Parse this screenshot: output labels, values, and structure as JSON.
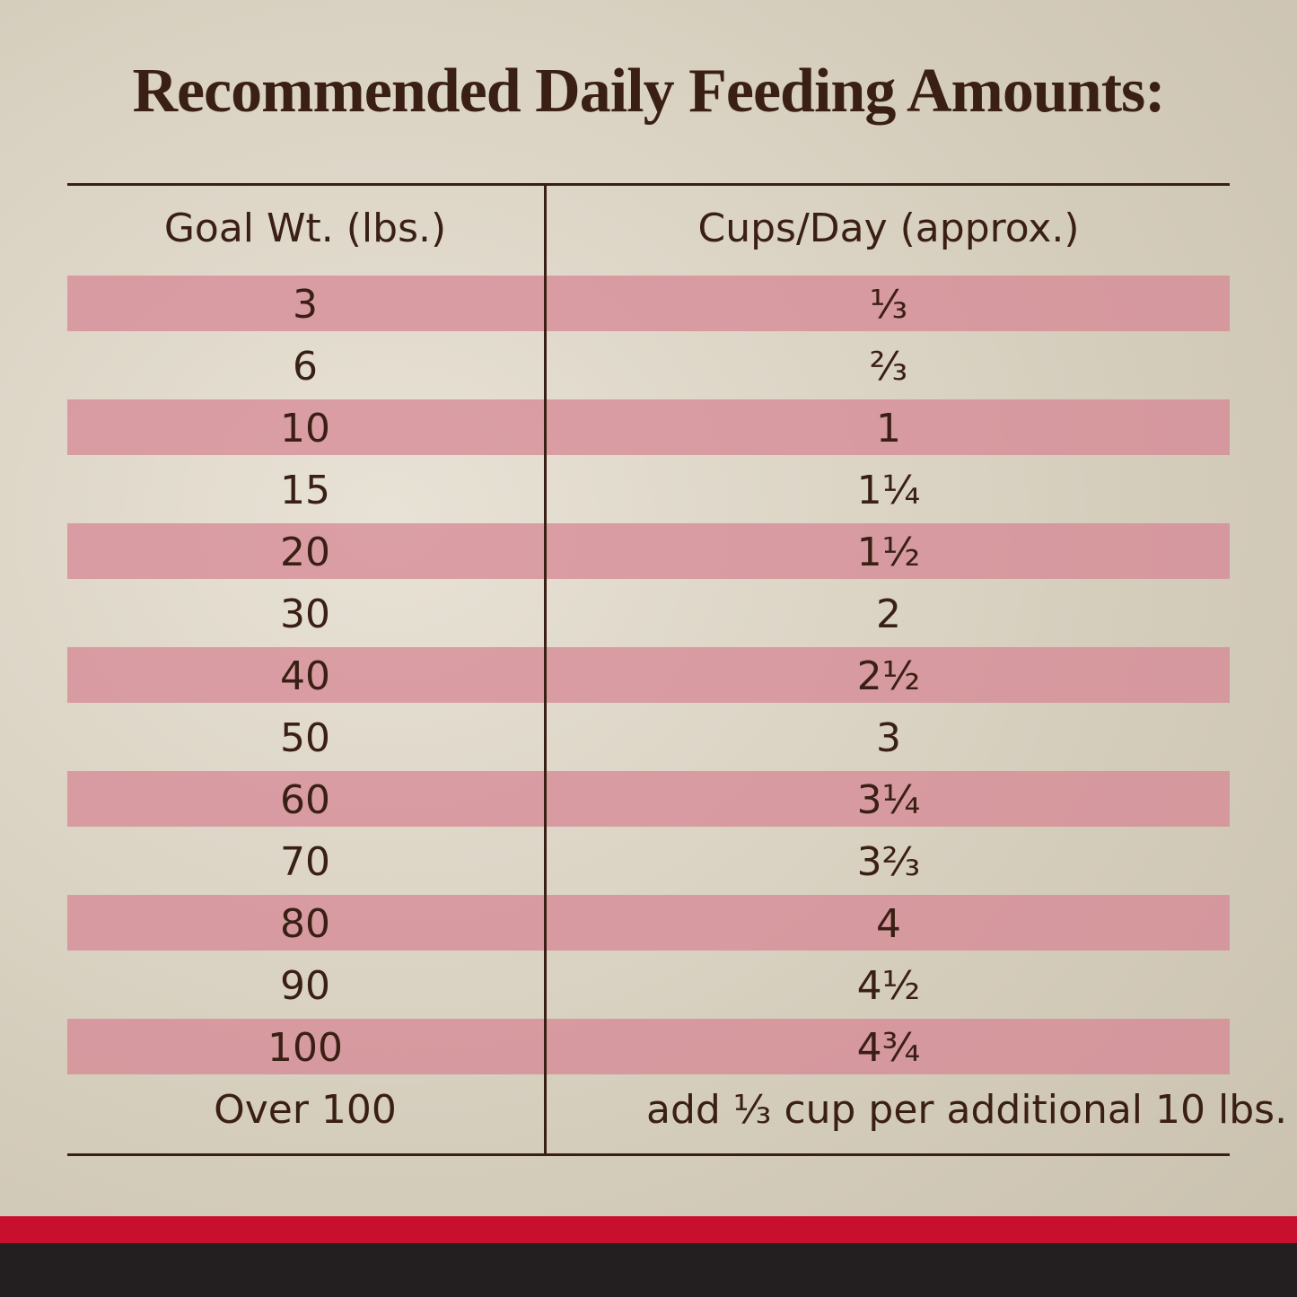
{
  "title": "Recommended Daily Feeding Amounts:",
  "table": {
    "header": [
      "Goal Wt. (lbs.)",
      "Cups/Day (approx.)"
    ],
    "rows": [
      [
        "3",
        "⅓"
      ],
      [
        "6",
        "⅔"
      ],
      [
        "10",
        "1"
      ],
      [
        "15",
        "1¼"
      ],
      [
        "20",
        "1½"
      ],
      [
        "30",
        "2"
      ],
      [
        "40",
        "2½"
      ],
      [
        "50",
        "3"
      ],
      [
        "60",
        "3¼"
      ],
      [
        "70",
        "3⅔"
      ],
      [
        "80",
        "4"
      ],
      [
        "90",
        "4½"
      ],
      [
        "100",
        "4¾"
      ],
      [
        "Over 100",
        "add ⅓ cup per additional 10 lbs."
      ]
    ]
  }
}
